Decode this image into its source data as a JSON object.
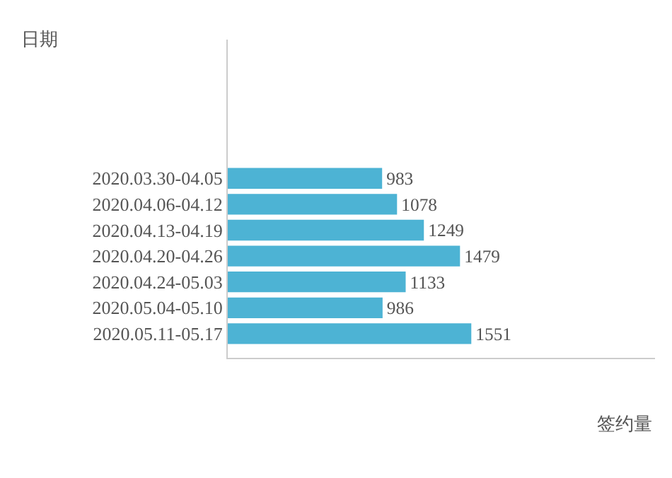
{
  "chart_data": {
    "type": "bar",
    "orientation": "horizontal",
    "categories": [
      "2020.03.30-04.05",
      "2020.04.06-04.12",
      "2020.04.13-04.19",
      "2020.04.20-04.26",
      "2020.04.24-05.03",
      "2020.05.04-05.10",
      "2020.05.11-05.17"
    ],
    "values": [
      983,
      1078,
      1249,
      1479,
      1133,
      986,
      1551
    ],
    "color": "#4db3d4",
    "data_labels": true,
    "tick_labels": "y",
    "annotations": [
      "日期",
      "签约量"
    ]
  }
}
